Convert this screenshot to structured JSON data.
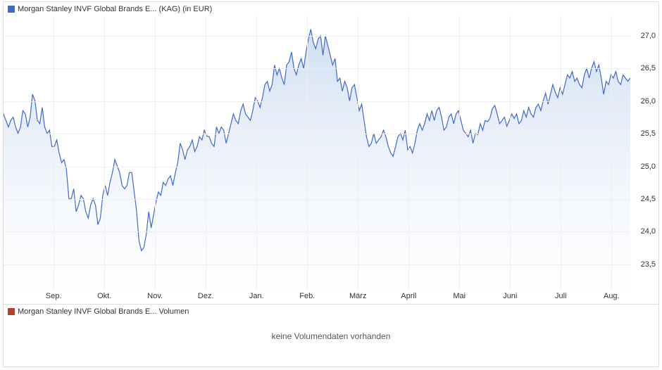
{
  "legend": {
    "main_label": "Morgan Stanley INVF Global Brands E... (KAG) (in EUR)",
    "main_color": "#4169c8",
    "volume_label": "Morgan Stanley INVF Global Brands E... Volumen",
    "volume_color": "#b04030"
  },
  "volume": {
    "empty_text": "keine Volumendaten vorhanden"
  },
  "price_chart": {
    "type": "area",
    "line_color": "#4169c8",
    "line_width": 1.2,
    "fill_top": "rgba(120,160,220,0.35)",
    "fill_bottom": "rgba(220,232,248,0.05)",
    "background": "#ffffff",
    "grid_color": "#eeeeee",
    "yaxis": {
      "min": 23.1,
      "max": 27.3,
      "ticks": [
        23.5,
        24.0,
        24.5,
        25.0,
        25.5,
        26.0,
        26.5,
        27.0
      ],
      "tick_format": "de",
      "fontsize": 11
    },
    "xaxis": {
      "labels": [
        "Sep.",
        "Okt.",
        "Nov.",
        "Dez.",
        "Jan.",
        "Feb.",
        "März",
        "April",
        "Mai",
        "Juni",
        "Juli",
        "Aug."
      ],
      "fontsize": 11,
      "n_points": 260
    },
    "series": [
      25.8,
      25.7,
      25.6,
      25.7,
      25.75,
      25.6,
      25.5,
      25.6,
      25.85,
      25.8,
      25.6,
      25.75,
      26.1,
      26.0,
      25.7,
      25.65,
      25.9,
      25.6,
      25.5,
      25.55,
      25.3,
      25.3,
      25.4,
      25.2,
      25.05,
      25.1,
      24.95,
      24.5,
      24.5,
      24.65,
      24.3,
      24.4,
      24.55,
      24.5,
      24.3,
      24.2,
      24.4,
      24.5,
      24.4,
      24.1,
      24.2,
      24.55,
      24.7,
      24.55,
      24.75,
      24.9,
      25.1,
      25.0,
      24.9,
      24.7,
      24.65,
      24.7,
      24.9,
      24.9,
      24.6,
      24.3,
      23.85,
      23.7,
      23.75,
      23.95,
      24.3,
      24.05,
      24.25,
      24.45,
      24.6,
      24.55,
      24.75,
      24.7,
      24.8,
      24.85,
      24.7,
      24.9,
      25.05,
      25.35,
      25.25,
      25.1,
      25.25,
      25.3,
      25.4,
      25.22,
      25.3,
      25.45,
      25.4,
      25.55,
      25.46,
      25.45,
      25.35,
      25.3,
      25.6,
      25.5,
      25.6,
      25.55,
      25.35,
      25.5,
      25.65,
      25.8,
      25.7,
      25.65,
      25.85,
      25.95,
      25.8,
      25.75,
      25.7,
      25.85,
      26.05,
      26.0,
      25.9,
      26.05,
      26.25,
      26.3,
      26.15,
      26.25,
      26.55,
      26.4,
      26.5,
      26.35,
      26.25,
      26.55,
      26.6,
      26.75,
      26.5,
      26.4,
      26.55,
      26.65,
      26.5,
      26.75,
      26.95,
      27.1,
      26.9,
      26.8,
      26.95,
      27.0,
      26.7,
      27.0,
      26.85,
      26.7,
      26.55,
      26.65,
      26.3,
      26.35,
      26.15,
      26.3,
      26.2,
      26.0,
      26.2,
      26.25,
      26.05,
      25.85,
      25.95,
      25.7,
      25.45,
      25.3,
      25.35,
      25.5,
      25.35,
      25.4,
      25.45,
      25.55,
      25.45,
      25.3,
      25.2,
      25.15,
      25.3,
      25.45,
      25.5,
      25.4,
      25.55,
      25.25,
      25.3,
      25.2,
      25.35,
      25.55,
      25.65,
      25.55,
      25.65,
      25.8,
      25.7,
      25.85,
      25.7,
      25.85,
      25.9,
      25.75,
      25.55,
      25.6,
      25.75,
      25.8,
      25.65,
      25.8,
      25.85,
      25.7,
      25.55,
      25.5,
      25.45,
      25.55,
      25.35,
      25.5,
      25.48,
      25.65,
      25.55,
      25.7,
      25.68,
      25.73,
      25.88,
      25.93,
      25.8,
      25.65,
      25.7,
      25.75,
      25.61,
      25.7,
      25.8,
      25.73,
      25.8,
      25.65,
      25.7,
      25.85,
      25.75,
      25.9,
      25.8,
      25.75,
      25.9,
      25.95,
      25.85,
      26.0,
      26.12,
      25.95,
      26.1,
      26.25,
      26.13,
      26.05,
      26.2,
      26.1,
      26.25,
      26.4,
      26.35,
      26.45,
      26.3,
      26.35,
      26.25,
      26.2,
      26.4,
      26.5,
      26.35,
      26.5,
      26.6,
      26.45,
      26.55,
      26.35,
      26.1,
      26.3,
      26.25,
      26.4,
      26.35,
      26.45,
      26.3,
      26.25,
      26.4,
      26.35,
      26.3,
      26.35
    ]
  }
}
